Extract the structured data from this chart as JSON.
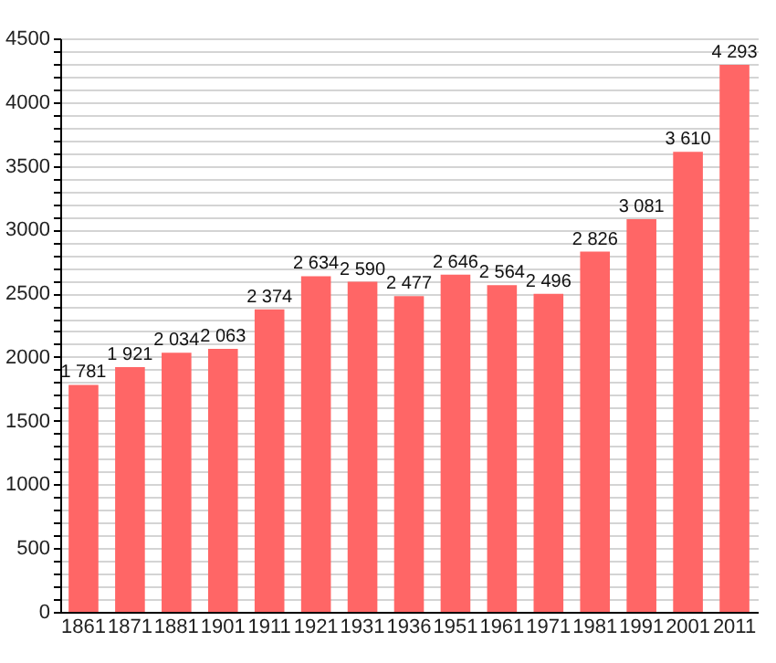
{
  "chart_data": {
    "type": "bar",
    "categories": [
      "1861",
      "1871",
      "1881",
      "1901",
      "1911",
      "1921",
      "1931",
      "1936",
      "1951",
      "1961",
      "1971",
      "1981",
      "1991",
      "2001",
      "2011"
    ],
    "values": [
      1781,
      1921,
      2034,
      2063,
      2374,
      2634,
      2590,
      2477,
      2646,
      2564,
      2496,
      2826,
      3081,
      3610,
      4293
    ],
    "value_labels": [
      "1 781",
      "1 921",
      "2 034",
      "2 063",
      "2 374",
      "2 634",
      "2 590",
      "2 477",
      "2 646",
      "2 564",
      "2 496",
      "2 826",
      "3 081",
      "3 610",
      "4 293"
    ],
    "color": "#ff6666",
    "ylim": [
      0,
      4500
    ],
    "yticks": [
      0,
      {
        "value": 100,
        "label": null
      },
      {
        "value": 200,
        "label": null
      },
      {
        "value": 300,
        "label": null
      },
      {
        "value": 400,
        "label": null
      },
      500,
      {
        "value": 600,
        "label": null
      },
      {
        "value": 700,
        "label": null
      },
      {
        "value": 800,
        "label": null
      },
      {
        "value": 900,
        "label": null
      },
      1000,
      {
        "value": 1100,
        "label": null
      },
      {
        "value": 1200,
        "label": null
      },
      {
        "value": 1300,
        "label": null
      },
      {
        "value": 1400,
        "label": null
      },
      1500,
      {
        "value": 1600,
        "label": null
      },
      {
        "value": 1700,
        "label": null
      },
      {
        "value": 1800,
        "label": null
      },
      {
        "value": 1900,
        "label": null
      },
      2000,
      {
        "value": 2100,
        "label": null
      },
      {
        "value": 2200,
        "label": null
      },
      {
        "value": 2300,
        "label": null
      },
      {
        "value": 2400,
        "label": null
      },
      2500,
      {
        "value": 2600,
        "label": null
      },
      {
        "value": 2700,
        "label": null
      },
      {
        "value": 2800,
        "label": null
      },
      {
        "value": 2900,
        "label": null
      },
      3000,
      {
        "value": 3100,
        "label": null
      },
      {
        "value": 3200,
        "label": null
      },
      {
        "value": 3300,
        "label": null
      },
      {
        "value": 3400,
        "label": null
      },
      3500,
      {
        "value": 3600,
        "label": null
      },
      {
        "value": 3700,
        "label": null
      },
      {
        "value": 3800,
        "label": null
      },
      {
        "value": 3900,
        "label": null
      },
      4000,
      {
        "value": 4100,
        "label": null
      },
      {
        "value": 4200,
        "label": null
      },
      {
        "value": 4300,
        "label": null
      },
      {
        "value": 4400,
        "label": null
      },
      4500
    ],
    "grid": "y"
  }
}
